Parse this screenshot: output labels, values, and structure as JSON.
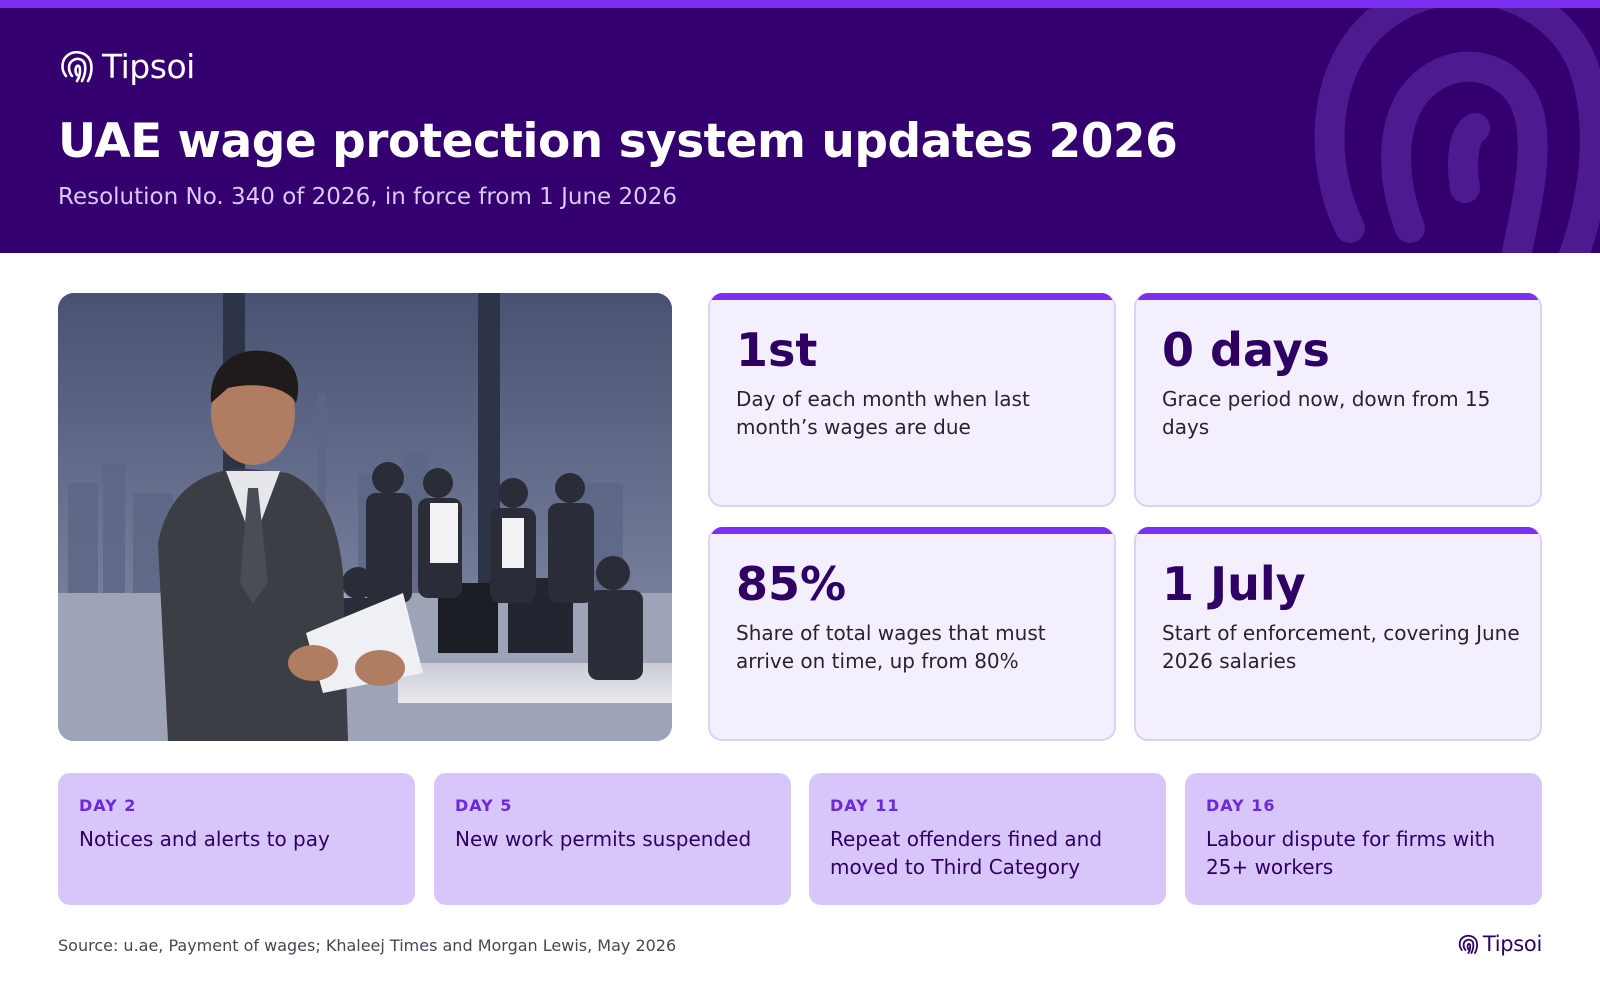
{
  "brand": {
    "name": "Tipsoi"
  },
  "header": {
    "title": "UAE wage protection system updates 2026",
    "subtitle": "Resolution No. 340 of 2026, in force from 1 June 2026"
  },
  "stats": [
    {
      "value": "1st",
      "description": "Day of each month when last month’s wages are due"
    },
    {
      "value": "0 days",
      "description": "Grace period now, down from 15 days"
    },
    {
      "value": "85%",
      "description": "Share of total wages that must arrive on time, up from 80%"
    },
    {
      "value": "1 July",
      "description": "Start of enforcement, covering June 2026 salaries"
    }
  ],
  "timeline": [
    {
      "label": "DAY 2",
      "text": "Notices and alerts to pay"
    },
    {
      "label": "DAY 5",
      "text": "New work permits suspended"
    },
    {
      "label": "DAY 11",
      "text": "Repeat offenders fined and moved to Third Category"
    },
    {
      "label": "DAY 16",
      "text": "Labour dispute for firms with 25+ workers"
    }
  ],
  "footer": {
    "source": "Source: u.ae, Payment of wages; Khaleej Times and Morgan Lewis, May 2026"
  },
  "colors": {
    "accent": "#7b2ff0",
    "header_bg": "#34006f",
    "card_bg": "#f4effd",
    "timeline_bg": "#d8c6fa",
    "dark_text": "#2e0063"
  },
  "icons": {
    "logo": "fingerprint-icon"
  }
}
